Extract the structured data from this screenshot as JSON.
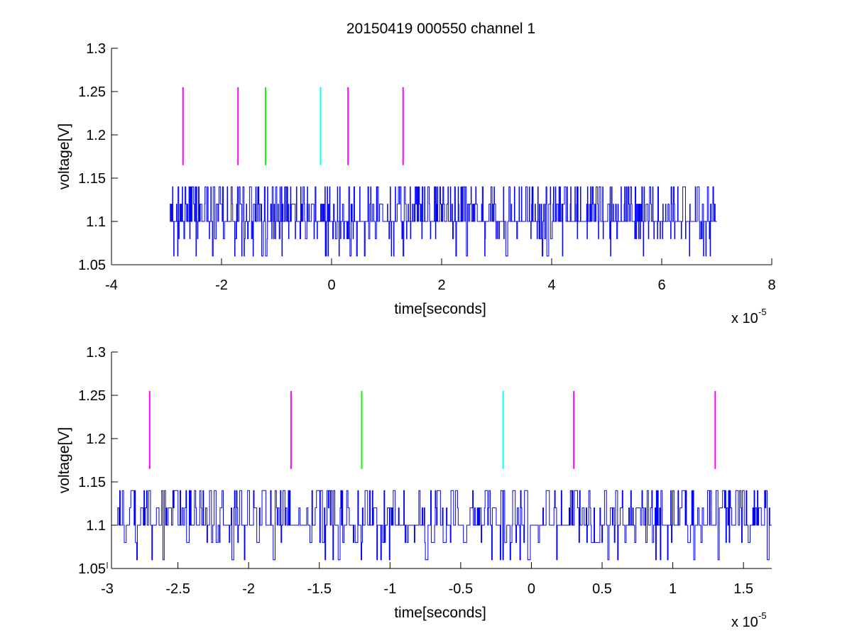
{
  "figure": {
    "title": "20150419 000550 channel 1"
  },
  "chart_data": [
    {
      "type": "line",
      "xlabel": "time[seconds]",
      "ylabel": "voltage[V]",
      "x_multiplier_base": "x 10",
      "x_multiplier_exp": "-5",
      "xlim": [
        -4e-05,
        8e-05
      ],
      "ylim": [
        1.05,
        1.3
      ],
      "xticks": [
        -4,
        -2,
        0,
        2,
        4,
        6,
        8
      ],
      "xtick_labels": [
        "-4",
        "-2",
        "0",
        "2",
        "4",
        "6",
        "8"
      ],
      "yticks": [
        1.05,
        1.1,
        1.15,
        1.2,
        1.25,
        1.3
      ],
      "ytick_labels": [
        "1.05",
        "1.1",
        "1.15",
        "1.2",
        "1.25",
        "1.3"
      ],
      "grid": false,
      "series": [
        {
          "color": "#0000ff",
          "x_start": -2.94e-05,
          "x_end": 7e-05,
          "levels": [
            1.06,
            1.08,
            1.1,
            1.12,
            1.14
          ],
          "description_values": "quantized noise trace around 1.1 V"
        }
      ],
      "markers": [
        {
          "x": -2.7e-05,
          "y0": 1.165,
          "y1": 1.255,
          "color": "#ff00ff"
        },
        {
          "x": -1.7e-05,
          "y0": 1.165,
          "y1": 1.255,
          "color": "#ff00ff"
        },
        {
          "x": -1.2e-05,
          "y0": 1.165,
          "y1": 1.255,
          "color": "#00ff00"
        },
        {
          "x": -2e-06,
          "y0": 1.165,
          "y1": 1.255,
          "color": "#00ffff"
        },
        {
          "x": 3e-06,
          "y0": 1.165,
          "y1": 1.255,
          "color": "#ff00ff"
        },
        {
          "x": 1.3e-05,
          "y0": 1.165,
          "y1": 1.255,
          "color": "#ff00ff"
        }
      ]
    },
    {
      "type": "line",
      "xlabel": "time[seconds]",
      "ylabel": "voltage[V]",
      "x_multiplier_base": "x 10",
      "x_multiplier_exp": "-5",
      "xlim": [
        -2.97e-05,
        1.7e-05
      ],
      "ylim": [
        1.05,
        1.3
      ],
      "xticks": [
        -3,
        -2.5,
        -2,
        -1.5,
        -1,
        -0.5,
        0,
        0.5,
        1,
        1.5
      ],
      "xtick_labels": [
        "-3",
        "-2.5",
        "-2",
        "-1.5",
        "-1",
        "-0.5",
        "0",
        "0.5",
        "1",
        "1.5"
      ],
      "yticks": [
        1.05,
        1.1,
        1.15,
        1.2,
        1.25,
        1.3
      ],
      "ytick_labels": [
        "1.05",
        "1.1",
        "1.15",
        "1.2",
        "1.25",
        "1.3"
      ],
      "grid": false,
      "series": [
        {
          "color": "#0000ff",
          "x_start": -2.94e-05,
          "x_end": 1.7e-05,
          "levels": [
            1.06,
            1.08,
            1.1,
            1.12,
            1.14
          ],
          "description_values": "quantized noise trace around 1.1 V"
        }
      ],
      "markers": [
        {
          "x": -2.7e-05,
          "y0": 1.165,
          "y1": 1.255,
          "color": "#ff00ff"
        },
        {
          "x": -1.7e-05,
          "y0": 1.165,
          "y1": 1.255,
          "color": "#ff00ff"
        },
        {
          "x": -1.2e-05,
          "y0": 1.165,
          "y1": 1.255,
          "color": "#00ff00"
        },
        {
          "x": -2e-06,
          "y0": 1.165,
          "y1": 1.255,
          "color": "#00ffff"
        },
        {
          "x": 3e-06,
          "y0": 1.165,
          "y1": 1.255,
          "color": "#ff00ff"
        },
        {
          "x": 1.3e-05,
          "y0": 1.165,
          "y1": 1.255,
          "color": "#ff00ff"
        }
      ]
    }
  ]
}
